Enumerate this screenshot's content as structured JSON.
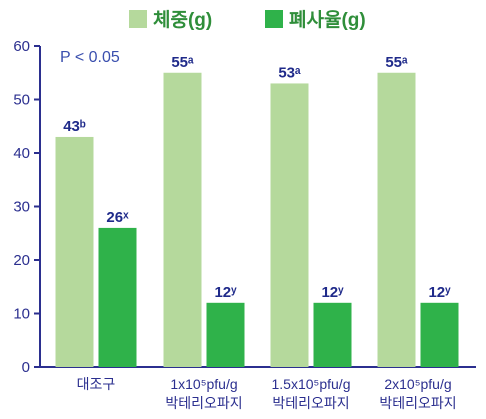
{
  "chart_data": {
    "type": "bar",
    "categories": [
      [
        "대조구"
      ],
      [
        "1x10⁵pfu/g",
        "박테리오파지"
      ],
      [
        "1.5x10⁵pfu/g",
        "박테리오파지"
      ],
      [
        "2x10⁵pfu/g",
        "박테리오파지"
      ]
    ],
    "series": [
      {
        "name": "체중(g)",
        "values": [
          43,
          55,
          53,
          55
        ],
        "value_labels": [
          "43ᵇ",
          "55ᵃ",
          "53ᵃ",
          "55ᵃ"
        ],
        "color": "#b5d99c"
      },
      {
        "name": "폐사율(g)",
        "values": [
          26,
          12,
          12,
          12
        ],
        "value_labels": [
          "26ˣ",
          "12ʸ",
          "12ʸ",
          "12ʸ"
        ],
        "color": "#2fb24a"
      }
    ],
    "annotation": "P < 0.05",
    "ylim": [
      0,
      60
    ],
    "yticks": [
      0,
      10,
      20,
      30,
      40,
      50,
      60
    ],
    "grid": false,
    "legend_position": "top"
  }
}
